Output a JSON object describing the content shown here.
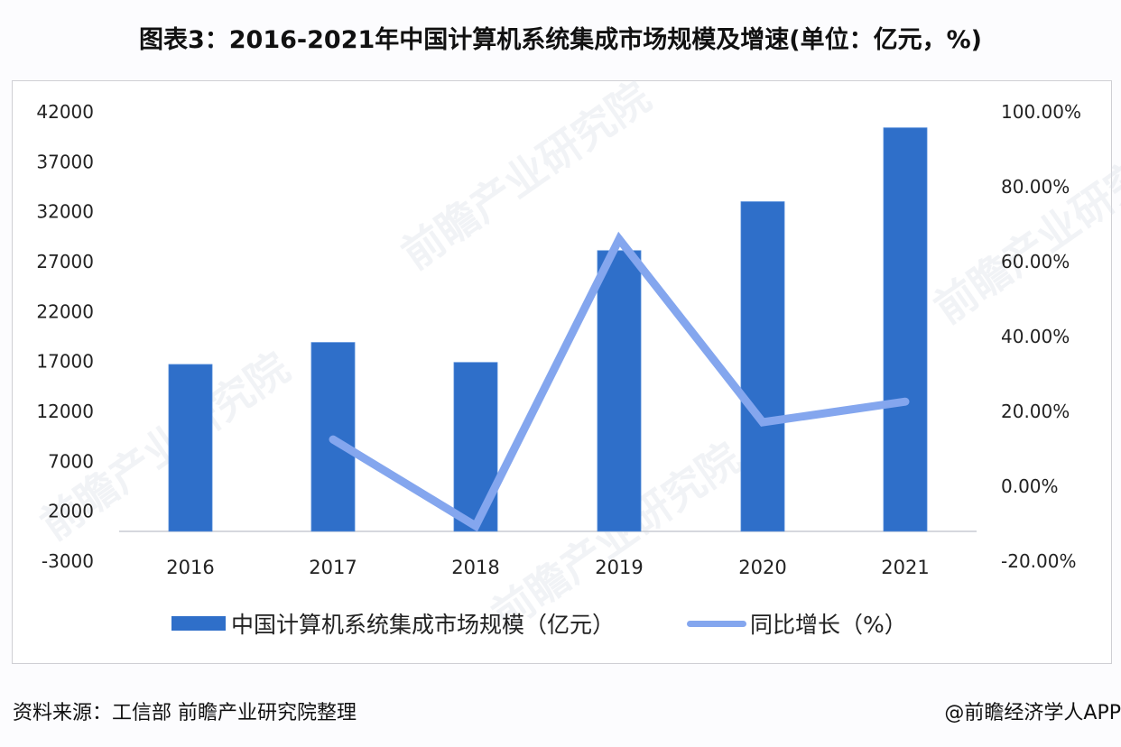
{
  "title": "图表3：2016-2021年中国计算机系统集成市场规模及增速(单位：亿元，%)",
  "chart_data": {
    "type": "bar+line",
    "title": "图表3：2016-2021年中国计算机系统集成市场规模及增速(单位：亿元，%)",
    "categories": [
      "2016",
      "2017",
      "2018",
      "2019",
      "2020",
      "2021"
    ],
    "series": [
      {
        "name": "中国计算机系统集成市场规模（亿元）",
        "type": "bar",
        "axis": "left",
        "color": "#2f6fc9",
        "values": [
          16700,
          18900,
          16900,
          28100,
          33000,
          40400
        ]
      },
      {
        "name": "同比增长（%）",
        "type": "line",
        "axis": "right",
        "color": "#84a6ee",
        "values": [
          null,
          12.5,
          -10.6,
          66.0,
          17.1,
          22.6
        ]
      }
    ],
    "left_axis": {
      "ticks": [
        "42000",
        "37000",
        "32000",
        "27000",
        "22000",
        "17000",
        "12000",
        "7000",
        "2000",
        "-3000"
      ],
      "range": [
        -3000,
        42000
      ]
    },
    "right_axis": {
      "ticks": [
        "100.00%",
        "80.00%",
        "60.00%",
        "40.00%",
        "20.00%",
        "0.00%",
        "-20.00%"
      ],
      "range": [
        -20,
        100
      ]
    },
    "xlabel": "",
    "ylabel": "",
    "grid": false,
    "legend_position": "bottom"
  },
  "legend": {
    "bar_label": "中国计算机系统集成市场规模（亿元）",
    "line_label": "同比增长（%）"
  },
  "footer": {
    "source": "资料来源：工信部 前瞻产业研究院整理",
    "credit": "@前瞻经济学人APP"
  },
  "watermark": "前瞻产业研究院"
}
